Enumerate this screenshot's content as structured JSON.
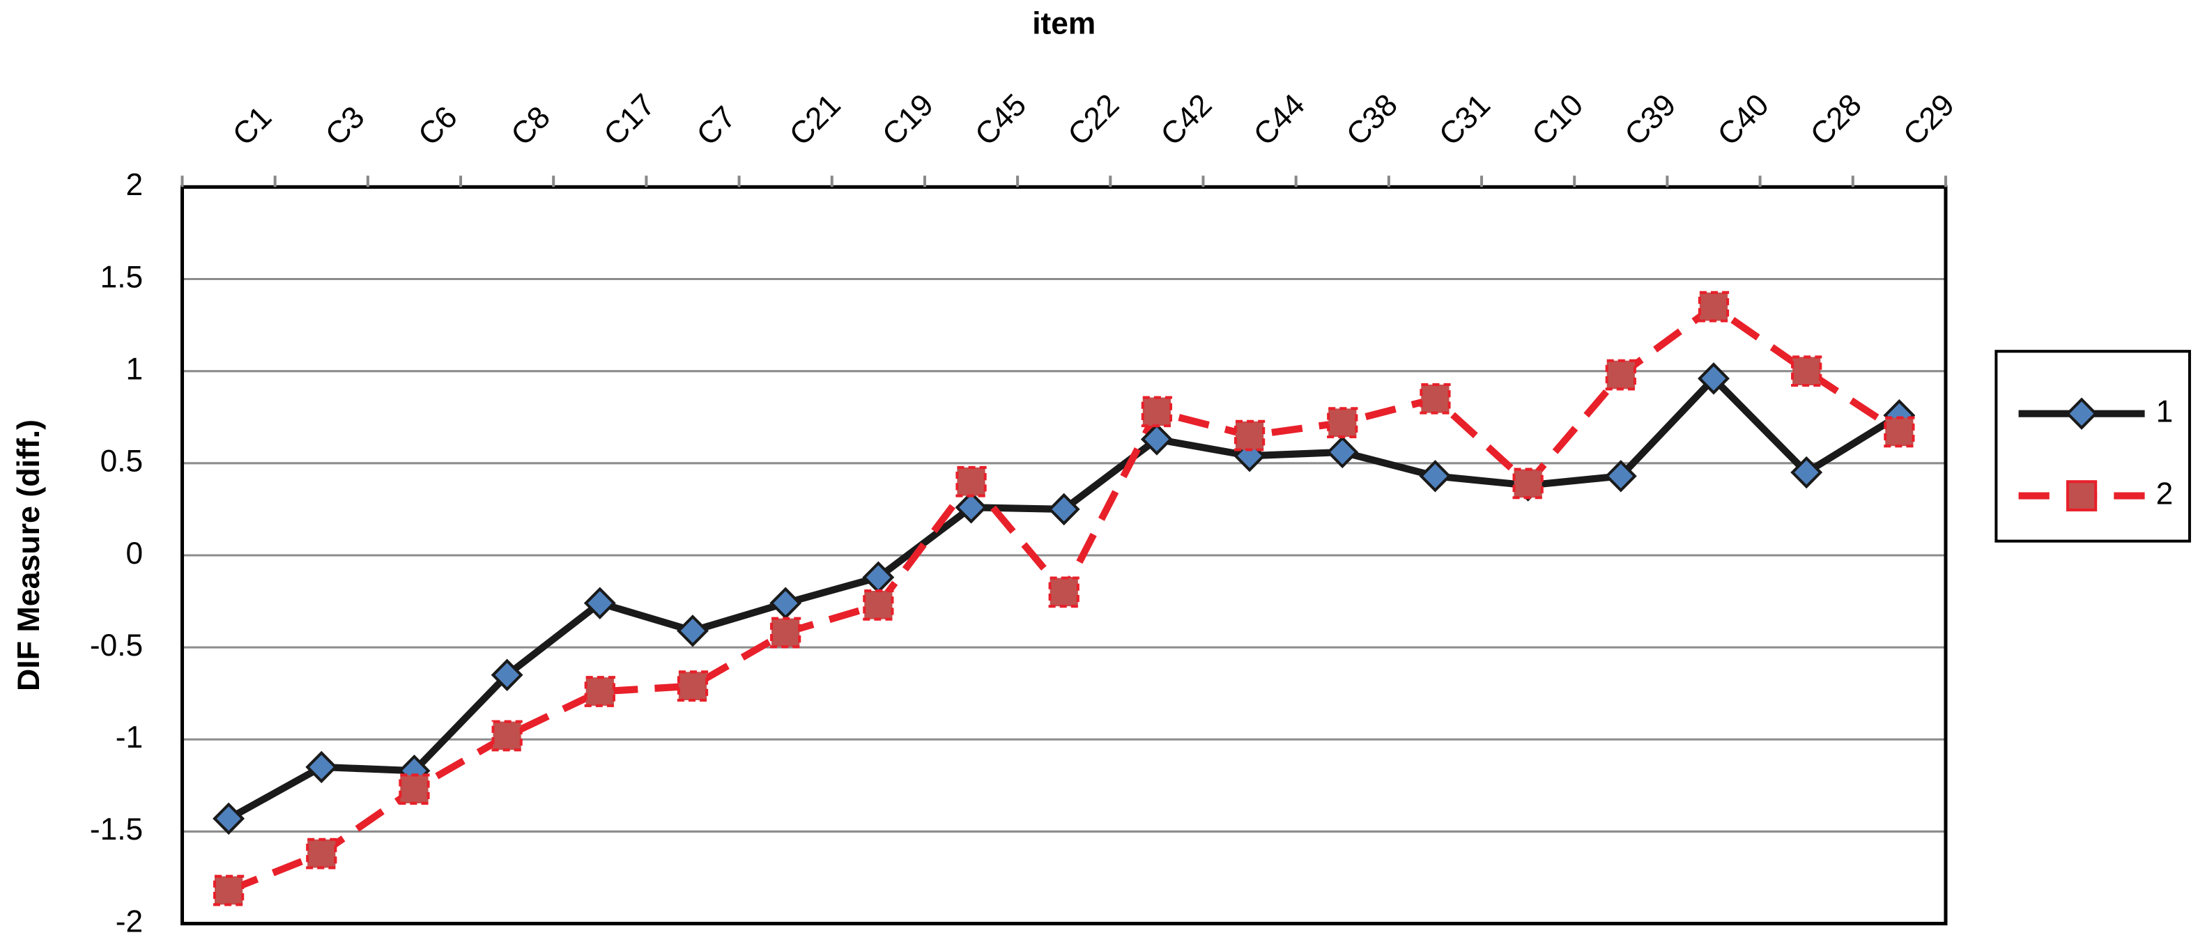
{
  "chart_data": {
    "type": "line",
    "title": "item",
    "y_label": "DIF Measure (diff.)",
    "categories": [
      "C1",
      "C3",
      "C6",
      "C8",
      "C17",
      "C7",
      "C21",
      "C19",
      "C45",
      "C22",
      "C42",
      "C44",
      "C38",
      "C31",
      "C10",
      "C39",
      "C40",
      "C28",
      "C29"
    ],
    "series": [
      {
        "name": "1",
        "color": "#1a1a1a",
        "marker_color": "#4f81bd",
        "marker": "diamond",
        "dashed": false,
        "values": [
          -1.43,
          -1.15,
          -1.17,
          -0.65,
          -0.26,
          -0.41,
          -0.26,
          -0.12,
          0.26,
          0.25,
          0.63,
          0.54,
          0.56,
          0.43,
          0.38,
          0.43,
          0.96,
          0.45,
          0.76
        ]
      },
      {
        "name": "2",
        "color": "#e8202a",
        "marker_color": "#c0504d",
        "marker": "square",
        "dashed": true,
        "values": [
          -1.82,
          -1.62,
          -1.27,
          -0.98,
          -0.74,
          -0.71,
          -0.42,
          -0.27,
          0.4,
          -0.2,
          0.78,
          0.65,
          0.72,
          0.85,
          0.39,
          0.98,
          1.35,
          1.0,
          0.67
        ]
      }
    ],
    "ylim": [
      -2,
      2
    ],
    "yticks": [
      -2,
      -1.5,
      -1,
      -0.5,
      0,
      0.5,
      1,
      1.5,
      2
    ],
    "grid": true,
    "legend": "right"
  }
}
